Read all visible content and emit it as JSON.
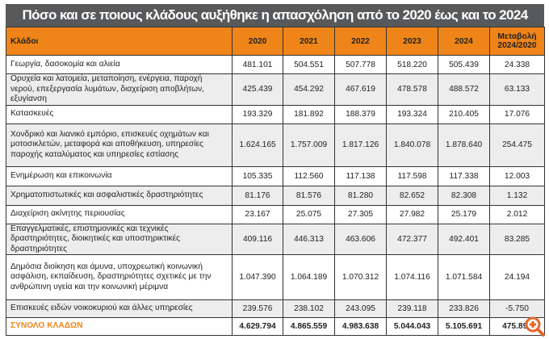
{
  "title": "Πόσο και σε ποιους κλάδους αυξήθηκε η απασχόληση από το 2020 έως και το 2024",
  "columns": [
    "Κλάδοι",
    "2020",
    "2021",
    "2022",
    "2023",
    "2024",
    "Μεταβολή 2024/2020"
  ],
  "rows": [
    {
      "label": "Γεωργία, δασοκομία και αλιεία",
      "values": [
        "481.101",
        "504.551",
        "507.778",
        "518.220",
        "505.439",
        "24.338"
      ]
    },
    {
      "label": "Ορυχεία και λατομεία, μεταποίηση, ενέργεια, παροχή νερού, επεξεργασία λυμάτων, διαχείριση αποβλήτων, εξυγίανση",
      "values": [
        "425.439",
        "454.292",
        "467.619",
        "478.578",
        "488.572",
        "63.133"
      ]
    },
    {
      "label": "Κατασκευές",
      "values": [
        "193.329",
        "181.892",
        "188.379",
        "193.324",
        "210.405",
        "17.076"
      ]
    },
    {
      "label": "Χονδρικό και λιανικό εμπόριο, επισκευές οχημάτων και μοτοσικλετών, μεταφορά και αποθήκευση, υπηρεσίες παροχής καταλύματος και υπηρεσίες εστίασης",
      "values": [
        "1.624.165",
        "1.757.009",
        "1.817.126",
        "1.840.078",
        "1.878.640",
        "254.475"
      ]
    },
    {
      "label": "Ενημέρωση και επικοινωνία",
      "values": [
        "105.335",
        "112.560",
        "117.138",
        "117.598",
        "117.338",
        "12.003"
      ]
    },
    {
      "label": "Χρηματοπιστωτικές και ασφαλιστικές δραστηριότητες",
      "values": [
        "81.176",
        "81.576",
        "81.280",
        "82.652",
        "82.308",
        "1.132"
      ]
    },
    {
      "label": "Διαχείριση ακίνητης περιουσίας",
      "values": [
        "23.167",
        "25.075",
        "27.305",
        "27.982",
        "25.179",
        "2.012"
      ]
    },
    {
      "label": "Επαγγελματικές, επιστημονικές και τεχνικές δραστηριότητες, διοικητικές και υποστηρικτικές δραστηριότητες",
      "values": [
        "409.116",
        "446.313",
        "463.606",
        "472.377",
        "492.401",
        "83.285"
      ]
    },
    {
      "label": "Δημόσια διοίκηση και άμυνα, υποχρεωτική κοινωνική ασφάλιση, εκπαίδευση, δραστηριότητες σχετικές με την ανθρώπινη υγεία και την κοινωνική μέριμνα",
      "values": [
        "1.047.390",
        "1.064.189",
        "1.070.312",
        "1.074.116",
        "1.071.584",
        "24.194"
      ]
    },
    {
      "label": "Επισκευές ειδών νοικοκυριού και άλλες υπηρεσίες",
      "values": [
        "239.576",
        "238.102",
        "243.095",
        "239.118",
        "233.826",
        "-5.750"
      ]
    }
  ],
  "total": {
    "label": "ΣΥΝΟΛΟ ΚΛΑΔΩΝ",
    "values": [
      "4.629.794",
      "4.865.559",
      "4.983.638",
      "5.044.043",
      "5.105.691",
      "475.897"
    ]
  },
  "colors": {
    "header": "#ef8518",
    "title_bg": "#58595b"
  }
}
